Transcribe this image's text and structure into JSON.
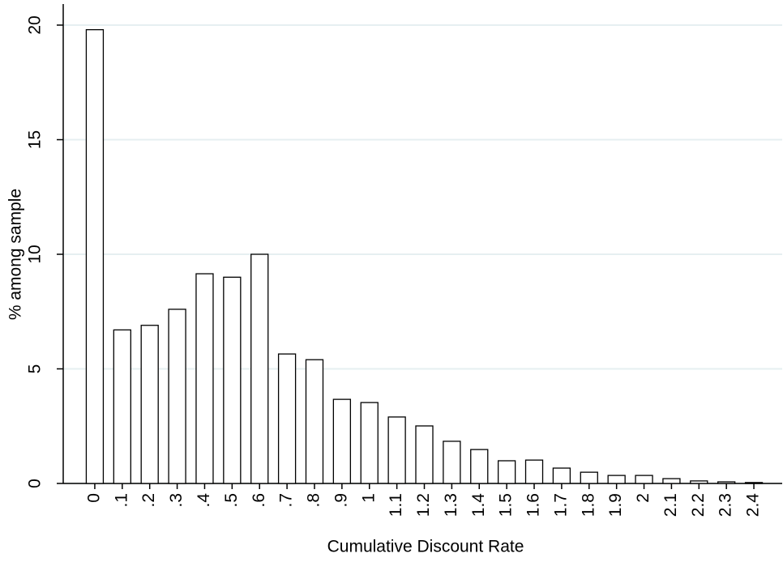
{
  "chart_data": {
    "type": "bar",
    "xlabel": "Cumulative Discount Rate",
    "ylabel": "% among sample",
    "categories": [
      "0",
      ".1",
      ".2",
      ".3",
      ".4",
      ".5",
      ".6",
      ".7",
      ".8",
      ".9",
      "1",
      "1.1",
      "1.2",
      "1.3",
      "1.4",
      "1.5",
      "1.6",
      "1.7",
      "1.8",
      "1.9",
      "2",
      "2.1",
      "2.2",
      "2.3",
      "2.4"
    ],
    "values": [
      19.8,
      6.7,
      6.9,
      7.6,
      9.15,
      9.0,
      10.0,
      5.65,
      5.4,
      3.67,
      3.53,
      2.9,
      2.51,
      1.84,
      1.48,
      0.99,
      1.02,
      0.67,
      0.49,
      0.35,
      0.35,
      0.21,
      0.11,
      0.07,
      0.04
    ],
    "color": "#ffffff",
    "ylim": [
      0,
      20
    ],
    "yticks": [
      0,
      5,
      10,
      15,
      20
    ],
    "grid": true
  }
}
